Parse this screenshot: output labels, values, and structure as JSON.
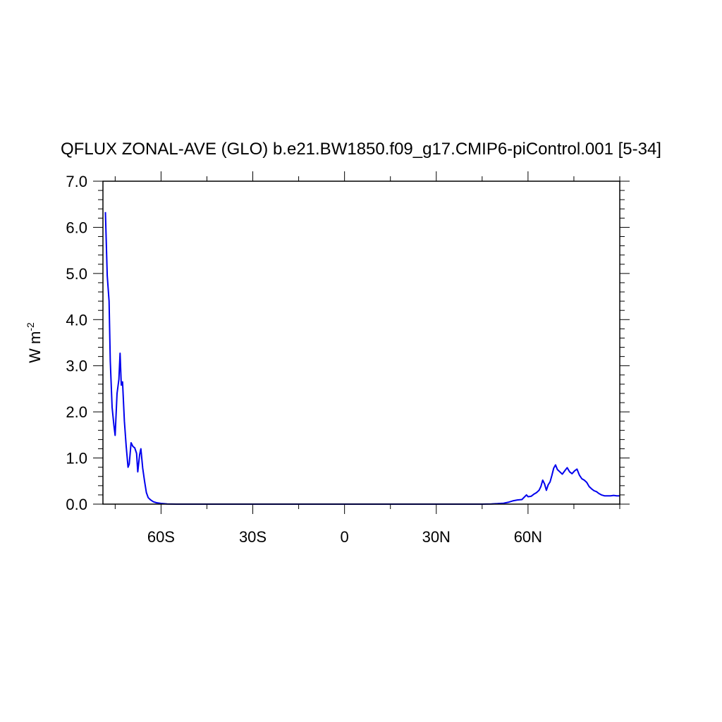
{
  "chart_data": {
    "type": "line",
    "title": "QFLUX ZONAL-AVE (GLO) b.e21.BW1850.f09_g17.CMIP6-piControl.001 [5-34]",
    "ylabel": "W m",
    "ylabel_superscript": "-2",
    "xlim": [
      -79,
      90
    ],
    "ylim": [
      0.0,
      7.0
    ],
    "x_ticks": [
      -60,
      -30,
      0,
      30,
      60
    ],
    "x_tick_labels": [
      "60S",
      "30S",
      "0",
      "30N",
      "60N"
    ],
    "y_ticks": [
      0,
      1,
      2,
      3,
      4,
      5,
      6,
      7
    ],
    "y_tick_labels": [
      "0.0",
      "1.0",
      "2.0",
      "3.0",
      "4.0",
      "5.0",
      "6.0",
      "7.0"
    ],
    "grid": false,
    "series": [
      {
        "color": "#0000ee",
        "x": [
          -78.2,
          -77.6,
          -77.0,
          -76.6,
          -76.0,
          -75.4,
          -75.0,
          -74.4,
          -73.8,
          -73.4,
          -73.0,
          -72.6,
          -72.0,
          -71.4,
          -70.8,
          -70.4,
          -69.8,
          -69.2,
          -68.6,
          -68.0,
          -67.6,
          -67.0,
          -66.6,
          -66.0,
          -65.4,
          -64.8,
          -64.2,
          -63.4,
          -62.5,
          -61.5,
          -60.0,
          -58.0,
          -55.0,
          -50.0,
          -40.0,
          -30.0,
          -20.0,
          -10.0,
          0.0,
          10.0,
          20.0,
          30.0,
          40.0,
          45.0,
          48.0,
          50.0,
          52.0,
          53.5,
          55.0,
          56.5,
          58.0,
          59.5,
          60.0,
          61.0,
          62.0,
          62.8,
          63.6,
          64.2,
          64.8,
          65.4,
          66.0,
          66.6,
          67.2,
          67.8,
          68.4,
          69.0,
          69.6,
          70.4,
          71.2,
          72.0,
          72.8,
          73.6,
          74.4,
          75.2,
          76.0,
          76.8,
          77.6,
          78.4,
          79.2,
          80.0,
          80.8,
          81.6,
          82.4,
          83.2,
          84.0,
          85.0,
          86.0,
          87.0,
          88.0,
          89.0,
          90.0
        ],
        "y": [
          6.33,
          4.95,
          4.4,
          3.1,
          2.1,
          1.7,
          1.49,
          2.4,
          2.7,
          3.27,
          2.58,
          2.65,
          1.8,
          1.25,
          0.8,
          0.87,
          1.33,
          1.25,
          1.22,
          1.1,
          0.7,
          1.07,
          1.2,
          0.78,
          0.5,
          0.25,
          0.14,
          0.09,
          0.05,
          0.03,
          0.015,
          0.005,
          0.0,
          0.0,
          0.0,
          0.0,
          0.0,
          0.0,
          0.0,
          0.0,
          0.0,
          0.0,
          0.0,
          0.0,
          0.005,
          0.01,
          0.02,
          0.04,
          0.07,
          0.09,
          0.1,
          0.2,
          0.16,
          0.17,
          0.22,
          0.25,
          0.3,
          0.38,
          0.52,
          0.44,
          0.3,
          0.42,
          0.48,
          0.62,
          0.78,
          0.85,
          0.75,
          0.7,
          0.65,
          0.72,
          0.79,
          0.7,
          0.66,
          0.72,
          0.76,
          0.63,
          0.55,
          0.52,
          0.47,
          0.38,
          0.33,
          0.29,
          0.27,
          0.23,
          0.2,
          0.18,
          0.18,
          0.18,
          0.19,
          0.18,
          0.18
        ]
      }
    ]
  }
}
